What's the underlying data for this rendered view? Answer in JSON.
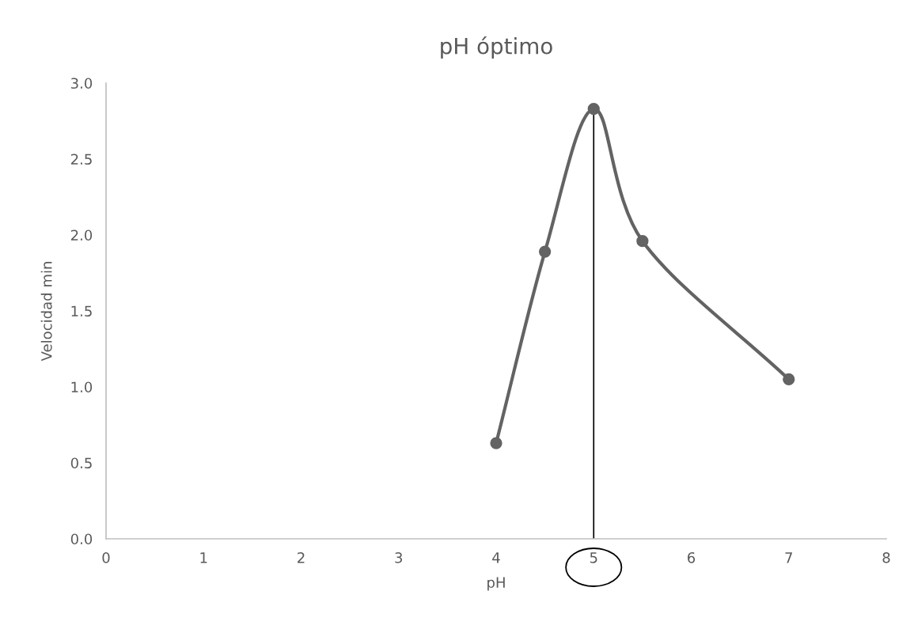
{
  "chart_data": {
    "type": "line",
    "title": "pH óptimo",
    "xlabel": "pH",
    "ylabel": "Velocidad min",
    "x": [
      4,
      4.5,
      5,
      5.5,
      7
    ],
    "series": [
      {
        "color": "#636363",
        "values": [
          0.63,
          1.89,
          2.83,
          1.96,
          1.05
        ]
      }
    ],
    "xlim": [
      0,
      8
    ],
    "xticks": [
      0,
      1,
      2,
      3,
      4,
      5,
      6,
      7,
      8
    ],
    "ylim": [
      0,
      3.0
    ],
    "yticks": [
      {
        "value": 0,
        "label": "0.0"
      },
      {
        "value": 0.5,
        "label": "0.5"
      },
      {
        "value": 1.0,
        "label": "1.0"
      },
      {
        "value": 1.5,
        "label": "1.5"
      },
      {
        "value": 2.0,
        "label": "2.0"
      },
      {
        "value": 2.5,
        "label": "2.5"
      },
      {
        "value": 3.0,
        "label": "3.0"
      }
    ],
    "ref_lines": [
      {
        "axis": "x",
        "value": 5,
        "color": "#000000"
      }
    ],
    "marker": "circle",
    "line_style": "solid",
    "grid": false,
    "legend": false
  }
}
